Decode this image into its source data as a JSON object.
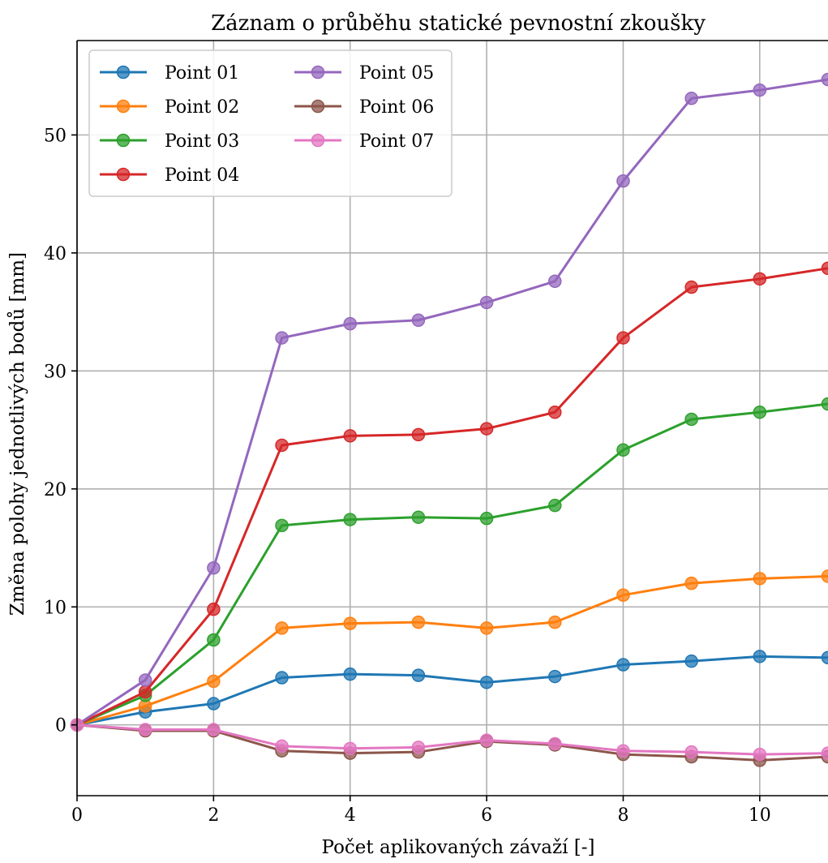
{
  "chart_data": {
    "type": "line",
    "title": "Záznam o průběhu statické pevnostní zkoušky",
    "xlabel": "Počet aplikovaných závaží [-]",
    "ylabel": "Změna polohy jednotlivých bodů [mm]",
    "xlim": [
      0,
      11
    ],
    "ylim": [
      -6,
      58
    ],
    "xticks": [
      0,
      2,
      4,
      6,
      8,
      10
    ],
    "yticks": [
      0,
      10,
      20,
      30,
      40,
      50
    ],
    "grid": true,
    "legend_position": "top-left",
    "legend_columns": 2,
    "x": [
      0,
      1,
      2,
      3,
      4,
      5,
      6,
      7,
      8,
      9,
      10,
      11
    ],
    "series": [
      {
        "name": "Point 01",
        "color": "#1f77b4",
        "values": [
          0,
          1.1,
          1.8,
          4.0,
          4.3,
          4.2,
          3.6,
          4.1,
          5.1,
          5.4,
          5.8,
          5.7
        ]
      },
      {
        "name": "Point 02",
        "color": "#ff7f0e",
        "values": [
          0,
          1.6,
          3.7,
          8.2,
          8.6,
          8.7,
          8.2,
          8.7,
          11.0,
          12.0,
          12.4,
          12.6
        ]
      },
      {
        "name": "Point 03",
        "color": "#2ca02c",
        "values": [
          0,
          2.5,
          7.2,
          16.9,
          17.4,
          17.6,
          17.5,
          18.6,
          23.3,
          25.9,
          26.5,
          27.2
        ]
      },
      {
        "name": "Point 04",
        "color": "#d62728",
        "values": [
          0,
          2.8,
          9.8,
          23.7,
          24.5,
          24.6,
          25.1,
          26.5,
          32.8,
          37.1,
          37.8,
          38.7
        ]
      },
      {
        "name": "Point 05",
        "color": "#9467bd",
        "values": [
          0,
          3.8,
          13.3,
          32.8,
          34.0,
          34.3,
          35.8,
          37.6,
          46.1,
          53.1,
          53.8,
          54.7
        ]
      },
      {
        "name": "Point 06",
        "color": "#8c564b",
        "values": [
          0,
          -0.5,
          -0.5,
          -2.2,
          -2.4,
          -2.3,
          -1.4,
          -1.7,
          -2.5,
          -2.7,
          -3.0,
          -2.7
        ]
      },
      {
        "name": "Point 07",
        "color": "#e377c2",
        "values": [
          0,
          -0.4,
          -0.4,
          -1.8,
          -2.0,
          -1.9,
          -1.3,
          -1.6,
          -2.2,
          -2.3,
          -2.5,
          -2.4
        ]
      }
    ]
  }
}
